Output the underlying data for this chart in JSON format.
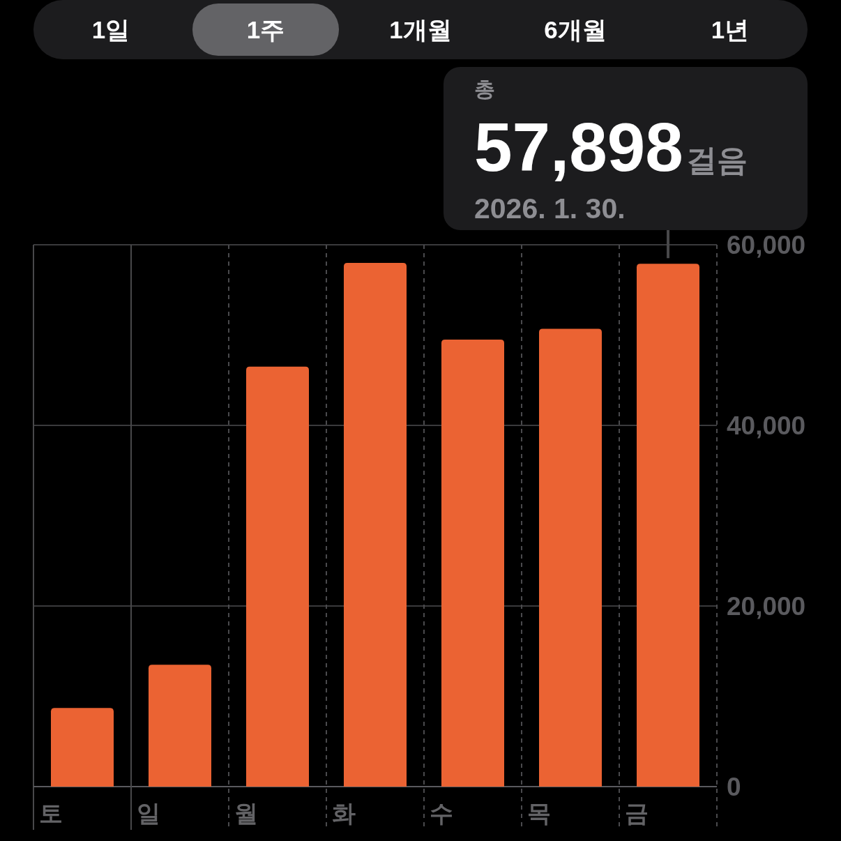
{
  "chart_data": {
    "type": "bar",
    "categories": [
      "토",
      "일",
      "월",
      "화",
      "수",
      "목",
      "금"
    ],
    "values": [
      8700,
      13500,
      46500,
      58000,
      49500,
      50700,
      57898
    ],
    "color": "#eb6333",
    "ylim": [
      0,
      60000
    ],
    "yticks": [
      {
        "value": 0,
        "label": "0"
      },
      {
        "value": 20000,
        "label": "20,000"
      },
      {
        "value": 40000,
        "label": "40,000"
      },
      {
        "value": 60000,
        "label": "60,000"
      }
    ],
    "grid": true,
    "ref_lines": [
      {
        "axis": "x",
        "value": "일",
        "color": "#48484a",
        "line_style": "solid"
      }
    ],
    "annotations": [
      "1일",
      "1주",
      "1개월",
      "6개월",
      "1년",
      "총",
      {
        "text": "57,898",
        "x": "금",
        "y": 57898
      },
      "걸음",
      "2026. 1. 30."
    ]
  }
}
